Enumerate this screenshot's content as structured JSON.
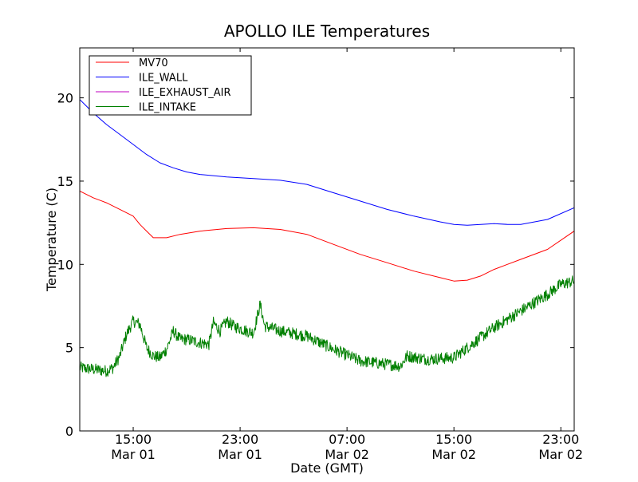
{
  "chart_data": {
    "type": "line",
    "title": "APOLLO ILE Temperatures",
    "xlabel": "Date (GMT)",
    "ylabel": "Temperature (C)",
    "xlim": [
      "2013-03-01 11:00",
      "2013-03-03 00:00"
    ],
    "ylim": [
      0,
      23
    ],
    "x_ticks": [
      {
        "time": "2013-03-01 15:00",
        "label": "15:00",
        "sublabel": "Mar 01"
      },
      {
        "time": "2013-03-01 23:00",
        "label": "23:00",
        "sublabel": "Mar 01"
      },
      {
        "time": "2013-03-02 07:00",
        "label": "07:00",
        "sublabel": "Mar 02"
      },
      {
        "time": "2013-03-02 15:00",
        "label": "15:00",
        "sublabel": "Mar 02"
      },
      {
        "time": "2013-03-02 23:00",
        "label": "23:00",
        "sublabel": "Mar 02"
      }
    ],
    "y_ticks": [
      0,
      5,
      10,
      15,
      20
    ],
    "grid": false,
    "legend": "upper-left",
    "series": [
      {
        "name": "MV70",
        "color": "#ff0000",
        "noise": 0,
        "points": [
          [
            "2013-03-01 11:00",
            14.4
          ],
          [
            "2013-03-01 12:00",
            14.0
          ],
          [
            "2013-03-01 13:00",
            13.7
          ],
          [
            "2013-03-01 14:00",
            13.3
          ],
          [
            "2013-03-01 15:00",
            12.9
          ],
          [
            "2013-03-01 15:30",
            12.4
          ],
          [
            "2013-03-01 16:00",
            12.0
          ],
          [
            "2013-03-01 16:30",
            11.6
          ],
          [
            "2013-03-01 17:30",
            11.6
          ],
          [
            "2013-03-01 18:30",
            11.8
          ],
          [
            "2013-03-01 20:00",
            12.0
          ],
          [
            "2013-03-01 22:00",
            12.15
          ],
          [
            "2013-03-02 00:00",
            12.2
          ],
          [
            "2013-03-02 02:00",
            12.1
          ],
          [
            "2013-03-02 04:00",
            11.8
          ],
          [
            "2013-03-02 06:00",
            11.2
          ],
          [
            "2013-03-02 08:00",
            10.6
          ],
          [
            "2013-03-02 10:00",
            10.1
          ],
          [
            "2013-03-02 12:00",
            9.6
          ],
          [
            "2013-03-02 14:00",
            9.2
          ],
          [
            "2013-03-02 15:00",
            9.0
          ],
          [
            "2013-03-02 16:00",
            9.05
          ],
          [
            "2013-03-02 17:00",
            9.3
          ],
          [
            "2013-03-02 18:00",
            9.7
          ],
          [
            "2013-03-02 20:00",
            10.3
          ],
          [
            "2013-03-02 22:00",
            10.9
          ],
          [
            "2013-03-03 00:00",
            12.0
          ]
        ]
      },
      {
        "name": "ILE_WALL",
        "color": "#0000ff",
        "noise": 0,
        "points": [
          [
            "2013-03-01 11:00",
            19.9
          ],
          [
            "2013-03-01 12:00",
            19.1
          ],
          [
            "2013-03-01 13:00",
            18.4
          ],
          [
            "2013-03-01 14:00",
            17.8
          ],
          [
            "2013-03-01 15:00",
            17.2
          ],
          [
            "2013-03-01 16:00",
            16.6
          ],
          [
            "2013-03-01 17:00",
            16.1
          ],
          [
            "2013-03-01 18:00",
            15.8
          ],
          [
            "2013-03-01 19:00",
            15.55
          ],
          [
            "2013-03-01 20:00",
            15.4
          ],
          [
            "2013-03-01 22:00",
            15.25
          ],
          [
            "2013-03-02 00:00",
            15.15
          ],
          [
            "2013-03-02 02:00",
            15.05
          ],
          [
            "2013-03-02 04:00",
            14.8
          ],
          [
            "2013-03-02 06:00",
            14.3
          ],
          [
            "2013-03-02 08:00",
            13.8
          ],
          [
            "2013-03-02 10:00",
            13.3
          ],
          [
            "2013-03-02 12:00",
            12.9
          ],
          [
            "2013-03-02 14:00",
            12.55
          ],
          [
            "2013-03-02 15:00",
            12.4
          ],
          [
            "2013-03-02 16:00",
            12.35
          ],
          [
            "2013-03-02 17:00",
            12.4
          ],
          [
            "2013-03-02 18:00",
            12.45
          ],
          [
            "2013-03-02 19:00",
            12.4
          ],
          [
            "2013-03-02 20:00",
            12.4
          ],
          [
            "2013-03-02 22:00",
            12.7
          ],
          [
            "2013-03-03 00:00",
            13.4
          ]
        ]
      },
      {
        "name": "ILE_EXHAUST_AIR",
        "color": "#bf00bf",
        "noise": 0,
        "points": []
      },
      {
        "name": "ILE_INTAKE",
        "color": "#008000",
        "noise": 0.6,
        "points": [
          [
            "2013-03-01 11:00",
            3.8
          ],
          [
            "2013-03-01 12:00",
            3.7
          ],
          [
            "2013-03-01 13:00",
            3.6
          ],
          [
            "2013-03-01 13:30",
            3.8
          ],
          [
            "2013-03-01 14:00",
            4.5
          ],
          [
            "2013-03-01 14:30",
            5.8
          ],
          [
            "2013-03-01 15:00",
            6.6
          ],
          [
            "2013-03-01 15:30",
            6.4
          ],
          [
            "2013-03-01 16:00",
            5.0
          ],
          [
            "2013-03-01 16:30",
            4.5
          ],
          [
            "2013-03-01 17:00",
            4.4
          ],
          [
            "2013-03-01 17:30",
            4.9
          ],
          [
            "2013-03-01 18:00",
            6.0
          ],
          [
            "2013-03-01 18:30",
            5.5
          ],
          [
            "2013-03-01 19:00",
            5.5
          ],
          [
            "2013-03-01 20:00",
            5.3
          ],
          [
            "2013-03-01 20:40",
            5.2
          ],
          [
            "2013-03-01 21:00",
            6.5
          ],
          [
            "2013-03-01 21:30",
            6.0
          ],
          [
            "2013-03-01 22:00",
            6.6
          ],
          [
            "2013-03-01 22:30",
            6.3
          ],
          [
            "2013-03-01 23:30",
            6.0
          ],
          [
            "2013-03-02 00:00",
            5.9
          ],
          [
            "2013-03-02 00:30",
            7.6
          ],
          [
            "2013-03-02 00:50",
            6.3
          ],
          [
            "2013-03-02 02:00",
            6.0
          ],
          [
            "2013-03-02 04:00",
            5.7
          ],
          [
            "2013-03-02 06:00",
            4.9
          ],
          [
            "2013-03-02 08:00",
            4.2
          ],
          [
            "2013-03-02 10:00",
            4.0
          ],
          [
            "2013-03-02 11:00",
            3.9
          ],
          [
            "2013-03-02 11:30",
            4.5
          ],
          [
            "2013-03-02 13:00",
            4.3
          ],
          [
            "2013-03-02 15:00",
            4.4
          ],
          [
            "2013-03-02 16:00",
            5.0
          ],
          [
            "2013-03-02 17:00",
            5.6
          ],
          [
            "2013-03-02 18:00",
            6.2
          ],
          [
            "2013-03-02 20:00",
            7.2
          ],
          [
            "2013-03-02 22:00",
            8.2
          ],
          [
            "2013-03-02 23:00",
            8.8
          ],
          [
            "2013-03-03 00:00",
            9.0
          ]
        ]
      }
    ]
  }
}
